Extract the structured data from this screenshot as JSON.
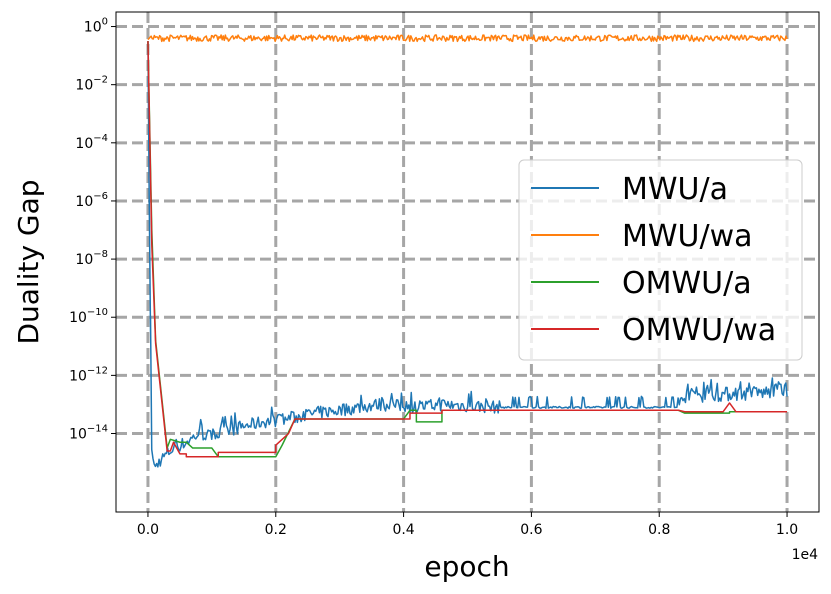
{
  "chart_data": {
    "type": "line",
    "title": "",
    "xlabel": "epoch",
    "ylabel": "Duality Gap",
    "x_offset_label": "1e4",
    "xscale": "linear",
    "yscale": "log",
    "xlim": [
      -0.05,
      1.05
    ],
    "ylim_log10": [
      -16.7,
      0.5
    ],
    "grid": true,
    "legend_position": "center right",
    "x_ticks": [
      {
        "value": 0.0,
        "label": "0.0"
      },
      {
        "value": 0.2,
        "label": "0.2"
      },
      {
        "value": 0.4,
        "label": "0.4"
      },
      {
        "value": 0.6,
        "label": "0.6"
      },
      {
        "value": 0.8,
        "label": "0.8"
      },
      {
        "value": 1.0,
        "label": "1.0"
      }
    ],
    "y_ticks": [
      {
        "exp": 0,
        "base": "10",
        "sup": "0"
      },
      {
        "exp": -2,
        "base": "10",
        "sup": "−2"
      },
      {
        "exp": -4,
        "base": "10",
        "sup": "−4"
      },
      {
        "exp": -6,
        "base": "10",
        "sup": "−6"
      },
      {
        "exp": -8,
        "base": "10",
        "sup": "−8"
      },
      {
        "exp": -10,
        "base": "10",
        "sup": "−10"
      },
      {
        "exp": -12,
        "base": "10",
        "sup": "−12"
      },
      {
        "exp": -14,
        "base": "10",
        "sup": "−14"
      }
    ],
    "series": [
      {
        "name": "MWU/a",
        "color": "#1f77b4",
        "style": "noisy",
        "points": [
          [
            0.0,
            -0.5
          ],
          [
            0.002,
            -6.0
          ],
          [
            0.004,
            -10.5
          ],
          [
            0.006,
            -14.6
          ],
          [
            0.01,
            -15.2
          ],
          [
            0.02,
            -14.9
          ],
          [
            0.04,
            -14.5
          ],
          [
            0.06,
            -14.3
          ],
          [
            0.08,
            -14.0
          ],
          [
            0.1,
            -14.1
          ],
          [
            0.14,
            -13.8
          ],
          [
            0.18,
            -13.6
          ],
          [
            0.22,
            -13.5
          ],
          [
            0.26,
            -13.3
          ],
          [
            0.3,
            -13.2
          ],
          [
            0.36,
            -13.0
          ],
          [
            0.42,
            -13.1
          ],
          [
            0.46,
            -13.0
          ],
          [
            0.5,
            -13.05
          ],
          [
            0.56,
            -13.1
          ],
          [
            0.62,
            -13.1
          ],
          [
            0.7,
            -13.1
          ],
          [
            0.78,
            -13.1
          ],
          [
            0.83,
            -13.1
          ],
          [
            0.84,
            -12.7
          ],
          [
            0.9,
            -12.65
          ],
          [
            0.96,
            -12.6
          ],
          [
            1.0,
            -12.5
          ]
        ]
      },
      {
        "name": "MWU/wa",
        "color": "#ff7f0e",
        "style": "oscillating",
        "points": [
          [
            0.0,
            -0.45
          ],
          [
            0.005,
            -0.4
          ],
          [
            1.0,
            -0.4
          ]
        ]
      },
      {
        "name": "OMWU/a",
        "color": "#2ca02c",
        "style": "steps",
        "points": [
          [
            0.0,
            -0.5
          ],
          [
            0.006,
            -7.0
          ],
          [
            0.012,
            -10.8
          ],
          [
            0.03,
            -14.5
          ],
          [
            0.035,
            -14.2
          ],
          [
            0.05,
            -14.3
          ],
          [
            0.06,
            -14.3
          ],
          [
            0.07,
            -14.5
          ],
          [
            0.1,
            -14.5
          ],
          [
            0.11,
            -14.8
          ],
          [
            0.2,
            -14.8
          ],
          [
            0.21,
            -14.4
          ],
          [
            0.23,
            -13.5
          ],
          [
            0.4,
            -13.5
          ],
          [
            0.41,
            -13.2
          ],
          [
            0.42,
            -13.2
          ],
          [
            0.42,
            -13.6
          ],
          [
            0.46,
            -13.6
          ],
          [
            0.46,
            -13.2
          ],
          [
            0.55,
            -13.2
          ],
          [
            0.83,
            -13.2
          ],
          [
            0.84,
            -13.3
          ],
          [
            0.91,
            -13.3
          ],
          [
            0.91,
            -13.25
          ],
          [
            1.0,
            -13.25
          ]
        ]
      },
      {
        "name": "OMWU/wa",
        "color": "#d62728",
        "style": "steps",
        "points": [
          [
            0.0,
            -0.5
          ],
          [
            0.006,
            -7.5
          ],
          [
            0.012,
            -10.9
          ],
          [
            0.03,
            -14.6
          ],
          [
            0.035,
            -14.6
          ],
          [
            0.04,
            -14.3
          ],
          [
            0.05,
            -14.7
          ],
          [
            0.06,
            -14.7
          ],
          [
            0.06,
            -14.8
          ],
          [
            0.11,
            -14.8
          ],
          [
            0.11,
            -14.65
          ],
          [
            0.2,
            -14.65
          ],
          [
            0.2,
            -14.4
          ],
          [
            0.22,
            -14.0
          ],
          [
            0.23,
            -13.5
          ],
          [
            0.41,
            -13.5
          ],
          [
            0.41,
            -13.3
          ],
          [
            0.46,
            -13.3
          ],
          [
            0.46,
            -13.2
          ],
          [
            0.83,
            -13.2
          ],
          [
            0.84,
            -13.25
          ],
          [
            0.9,
            -13.25
          ],
          [
            0.91,
            -12.95
          ],
          [
            0.92,
            -13.25
          ],
          [
            1.0,
            -13.25
          ]
        ]
      }
    ]
  }
}
